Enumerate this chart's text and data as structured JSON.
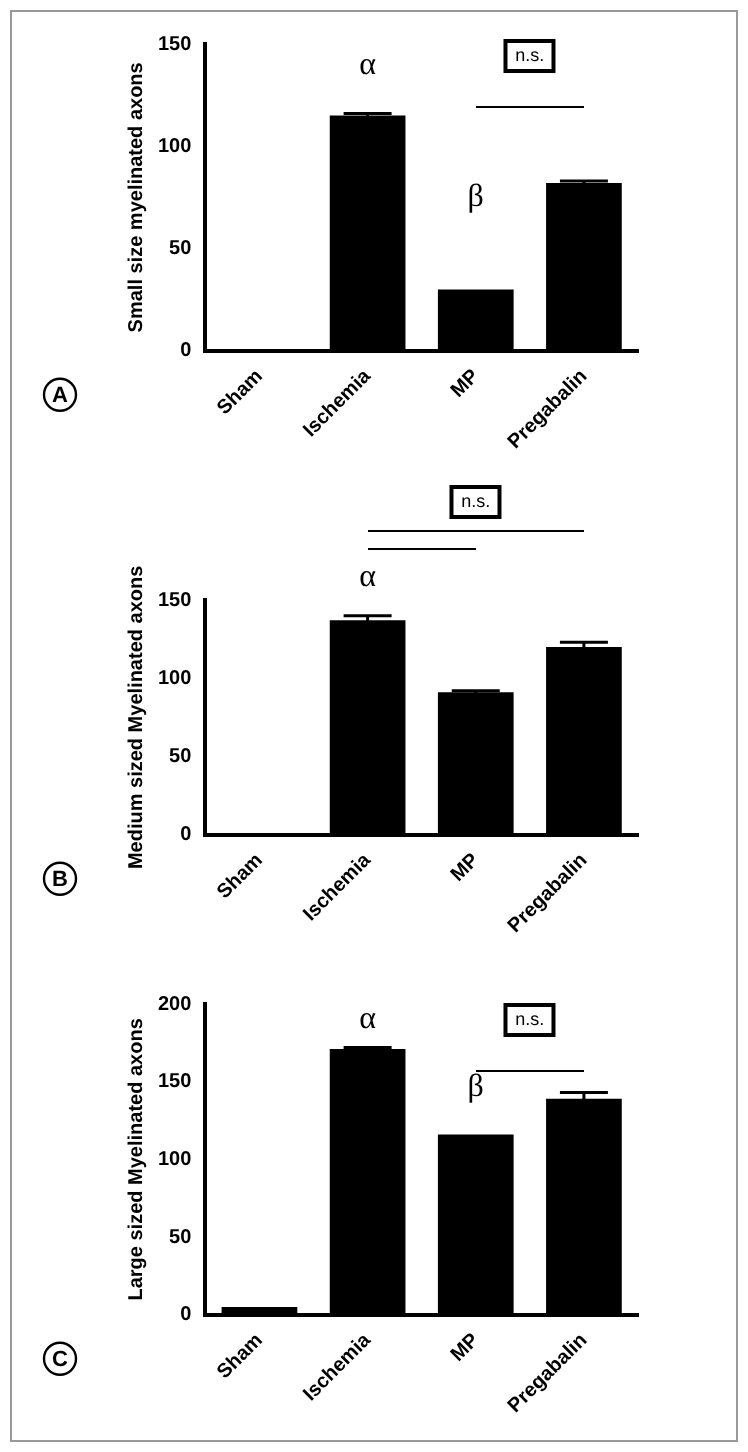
{
  "chart_data": [
    {
      "type": "bar",
      "title": "A",
      "ylabel": "Small size myelinated axons",
      "categories": [
        "Sham",
        "Ischemia",
        "MP",
        "Pregabalin"
      ],
      "values": [
        0,
        115,
        30,
        82
      ],
      "errors": [
        null,
        1,
        null,
        1
      ],
      "color": "#000000",
      "ylim": [
        0,
        150
      ],
      "yticks": [
        0,
        50,
        100,
        150
      ],
      "grid": false,
      "legend": false,
      "annotations": [
        "α",
        "β",
        "n.s."
      ]
    },
    {
      "type": "bar",
      "title": "B",
      "ylabel": "Medium sized Myelinated axons",
      "categories": [
        "Sham",
        "Ischemia",
        "MP",
        "Pregabalin"
      ],
      "values": [
        0,
        137,
        91,
        120
      ],
      "errors": [
        null,
        3,
        1,
        3
      ],
      "color": "#000000",
      "ylim": [
        0,
        150
      ],
      "yticks": [
        0,
        50,
        100,
        150
      ],
      "grid": false,
      "legend": false,
      "annotations": [
        "α",
        "n.s."
      ]
    },
    {
      "type": "bar",
      "title": "C",
      "ylabel": "Large sized Myelinated axons",
      "categories": [
        "Sham",
        "Ischemia",
        "MP",
        "Pregabalin"
      ],
      "values": [
        5,
        171,
        116,
        139
      ],
      "errors": [
        null,
        1,
        null,
        4
      ],
      "color": "#000000",
      "ylim": [
        0,
        200
      ],
      "yticks": [
        0,
        50,
        100,
        150,
        200
      ],
      "grid": false,
      "legend": false,
      "annotations": [
        "α",
        "β",
        "n.s."
      ]
    }
  ]
}
